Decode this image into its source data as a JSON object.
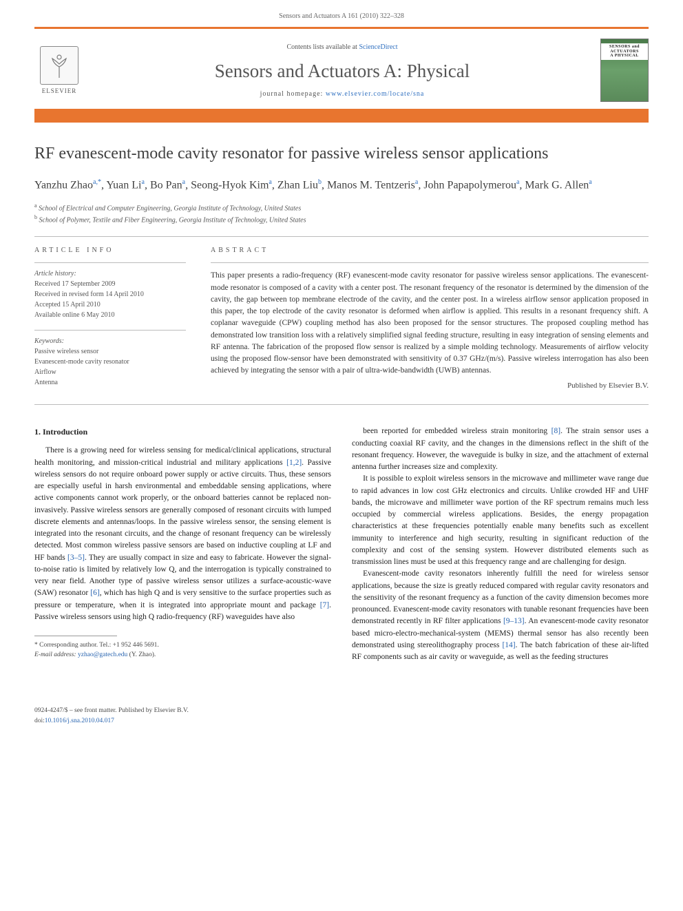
{
  "header": {
    "running": "Sensors and Actuators A 161 (2010) 322–328"
  },
  "banner": {
    "contents_prefix": "Contents lists available at ",
    "contents_link": "ScienceDirect",
    "journal_name": "Sensors and Actuators A: Physical",
    "homepage_prefix": "journal homepage: ",
    "homepage_link": "www.elsevier.com/locate/sna",
    "elsevier": "ELSEVIER",
    "cover_label": "SENSORS and ACTUATORS",
    "cover_sub": "A PHYSICAL"
  },
  "title": "RF evanescent-mode cavity resonator for passive wireless sensor applications",
  "authors_html": "Yanzhu Zhao|a,*|, Yuan Li|a|, Bo Pan|a|, Seong-Hyok Kim|a|, Zhan Liu|b|, Manos M. Tentzeris|a|, John Papapolymerou|a|, Mark G. Allen|a|",
  "affiliations": {
    "a": "School of Electrical and Computer Engineering, Georgia Institute of Technology, United States",
    "b": "School of Polymer, Textile and Fiber Engineering, Georgia Institute of Technology, United States"
  },
  "info": {
    "label": "ARTICLE INFO",
    "history_label": "Article history:",
    "history": [
      "Received 17 September 2009",
      "Received in revised form 14 April 2010",
      "Accepted 15 April 2010",
      "Available online 6 May 2010"
    ],
    "keywords_label": "Keywords:",
    "keywords": [
      "Passive wireless sensor",
      "Evanescent-mode cavity resonator",
      "Airflow",
      "Antenna"
    ]
  },
  "abstract": {
    "label": "ABSTRACT",
    "text": "This paper presents a radio-frequency (RF) evanescent-mode cavity resonator for passive wireless sensor applications. The evanescent-mode resonator is composed of a cavity with a center post. The resonant frequency of the resonator is determined by the dimension of the cavity, the gap between top membrane electrode of the cavity, and the center post. In a wireless airflow sensor application proposed in this paper, the top electrode of the cavity resonator is deformed when airflow is applied. This results in a resonant frequency shift. A coplanar waveguide (CPW) coupling method has also been proposed for the sensor structures. The proposed coupling method has demonstrated low transition loss with a relatively simplified signal feeding structure, resulting in easy integration of sensing elements and RF antenna. The fabrication of the proposed flow sensor is realized by a simple molding technology. Measurements of airflow velocity using the proposed flow-sensor have been demonstrated with sensitivity of 0.37 GHz/(m/s). Passive wireless interrogation has also been achieved by integrating the sensor with a pair of ultra-wide-bandwidth (UWB) antennas.",
    "pub": "Published by Elsevier B.V."
  },
  "intro": {
    "heading": "1. Introduction",
    "p1": "There is a growing need for wireless sensing for medical/clinical applications, structural health monitoring, and mission-critical industrial and military applications [1,2]. Passive wireless sensors do not require onboard power supply or active circuits. Thus, these sensors are especially useful in harsh environmental and embeddable sensing applications, where active components cannot work properly, or the onboard batteries cannot be replaced non-invasively. Passive wireless sensors are generally composed of resonant circuits with lumped discrete elements and antennas/loops. In the passive wireless sensor, the sensing element is integrated into the resonant circuits, and the change of resonant frequency can be wirelessly detected. Most common wireless passive sensors are based on inductive coupling at LF and HF bands [3–5]. They are usually compact in size and easy to fabricate. However the signal-to-noise ratio is limited by relatively low Q, and the interrogation is typically constrained to very near field. Another type of passive wireless sensor utilizes a surface-acoustic-wave (SAW) resonator [6], which has high Q and is very sensitive to the surface properties such as pressure or temperature, when it is integrated into appropriate mount and package [7]. Passive wireless sensors using high Q radio-frequency (RF) waveguides have also",
    "p2": "been reported for embedded wireless strain monitoring [8]. The strain sensor uses a conducting coaxial RF cavity, and the changes in the dimensions reflect in the shift of the resonant frequency. However, the waveguide is bulky in size, and the attachment of external antenna further increases size and complexity.",
    "p3": "It is possible to exploit wireless sensors in the microwave and millimeter wave range due to rapid advances in low cost GHz electronics and circuits. Unlike crowded HF and UHF bands, the microwave and millimeter wave portion of the RF spectrum remains much less occupied by commercial wireless applications. Besides, the energy propagation characteristics at these frequencies potentially enable many benefits such as excellent immunity to interference and high security, resulting in significant reduction of the complexity and cost of the sensing system. However distributed elements such as transmission lines must be used at this frequency range and are challenging for design.",
    "p4": "Evanescent-mode cavity resonators inherently fulfill the need for wireless sensor applications, because the size is greatly reduced compared with regular cavity resonators and the sensitivity of the resonant frequency as a function of the cavity dimension becomes more pronounced. Evanescent-mode cavity resonators with tunable resonant frequencies have been demonstrated recently in RF filter applications [9–13]. An evanescent-mode cavity resonator based micro-electro-mechanical-system (MEMS) thermal sensor has also recently been demonstrated using stereolithography process [14]. The batch fabrication of these air-lifted RF components such as air cavity or waveguide, as well as the feeding structures"
  },
  "footnote": {
    "corr": "* Corresponding author. Tel.: +1 952 446 5691.",
    "email_label": "E-mail address:",
    "email": "yzhao@gatech.edu",
    "email_who": "(Y. Zhao)."
  },
  "footer": {
    "line1": "0924-4247/$ – see front matter. Published by Elsevier B.V.",
    "doi_label": "doi:",
    "doi": "10.1016/j.sna.2010.04.017"
  },
  "colors": {
    "brand_orange": "#e8752f",
    "link_blue": "#2864b0",
    "text_gray": "#555555"
  }
}
